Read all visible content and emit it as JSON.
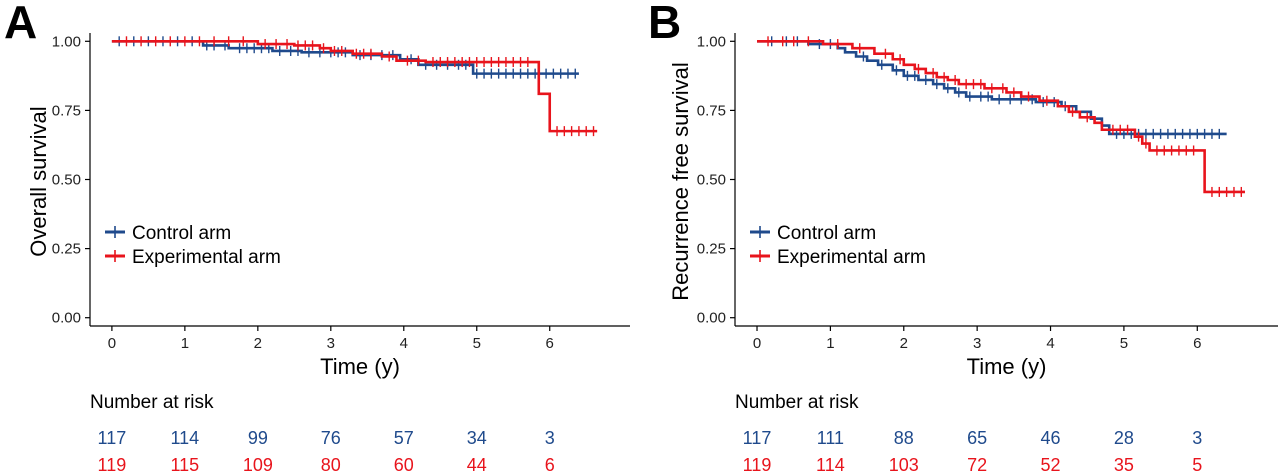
{
  "colors": {
    "control": "#1f4a8c",
    "experimental": "#e8141c",
    "axis": "#000000"
  },
  "number_at_risk_label": "Number at risk",
  "chart_data": [
    {
      "type": "line",
      "subtype": "kaplan-meier",
      "panel_label": "A",
      "title": "",
      "xlabel": "Time (y)",
      "ylabel": "Overall survival",
      "xlim": [
        -0.3,
        7.1
      ],
      "ylim": [
        -0.03,
        1.03
      ],
      "xticks": [
        0,
        1,
        2,
        3,
        4,
        5,
        6
      ],
      "yticks": [
        "0.00",
        "0.25",
        "0.50",
        "0.75",
        "1.00"
      ],
      "grid": false,
      "legend_position": "middle-left",
      "series": [
        {
          "name": "Control arm",
          "color": "#1f4a8c",
          "steps": [
            [
              0,
              1.0
            ],
            [
              1.25,
              0.985
            ],
            [
              1.6,
              0.975
            ],
            [
              2.2,
              0.965
            ],
            [
              2.6,
              0.96
            ],
            [
              3.3,
              0.95
            ],
            [
              3.95,
              0.935
            ],
            [
              4.2,
              0.915
            ],
            [
              4.95,
              0.883
            ],
            [
              6.4,
              0.883
            ]
          ],
          "censors": [
            0.1,
            0.3,
            0.5,
            0.7,
            0.9,
            1.1,
            1.3,
            1.4,
            1.55,
            1.75,
            1.85,
            1.95,
            2.05,
            2.15,
            2.3,
            2.45,
            2.55,
            2.7,
            2.85,
            3.0,
            3.1,
            3.2,
            3.4,
            3.55,
            3.7,
            3.85,
            4.1,
            4.3,
            4.45,
            4.6,
            4.75,
            4.85,
            5.0,
            5.1,
            5.2,
            5.3,
            5.4,
            5.5,
            5.6,
            5.7,
            5.8,
            5.95,
            6.05,
            6.15,
            6.25,
            6.35
          ]
        },
        {
          "name": "Experimental arm",
          "color": "#e8141c",
          "steps": [
            [
              0,
              1.0
            ],
            [
              2.0,
              0.99
            ],
            [
              2.5,
              0.985
            ],
            [
              2.85,
              0.975
            ],
            [
              3.0,
              0.965
            ],
            [
              3.3,
              0.955
            ],
            [
              3.7,
              0.945
            ],
            [
              3.9,
              0.93
            ],
            [
              4.3,
              0.925
            ],
            [
              5.85,
              0.81
            ],
            [
              6.0,
              0.675
            ],
            [
              6.65,
              0.675
            ]
          ],
          "censors": [
            0.2,
            0.4,
            0.6,
            0.8,
            1.0,
            1.2,
            1.4,
            1.6,
            1.8,
            2.1,
            2.25,
            2.4,
            2.55,
            2.65,
            2.75,
            2.9,
            3.05,
            3.15,
            3.35,
            3.45,
            3.55,
            3.8,
            4.05,
            4.2,
            4.4,
            4.5,
            4.6,
            4.7,
            4.8,
            4.9,
            5.0,
            5.1,
            5.2,
            5.3,
            5.4,
            5.5,
            5.6,
            5.7,
            6.1,
            6.2,
            6.3,
            6.4,
            6.5,
            6.6
          ]
        }
      ],
      "number_at_risk": {
        "times": [
          0,
          1,
          2,
          3,
          4,
          5,
          6
        ],
        "control": [
          "117",
          "114",
          "99",
          "76",
          "57",
          "34",
          "3"
        ],
        "experimental": [
          "119",
          "115",
          "109",
          "80",
          "60",
          "44",
          "6"
        ]
      }
    },
    {
      "type": "line",
      "subtype": "kaplan-meier",
      "panel_label": "B",
      "title": "",
      "xlabel": "Time (y)",
      "ylabel": "Recurrence free survival",
      "xlim": [
        -0.3,
        7.1
      ],
      "ylim": [
        -0.03,
        1.03
      ],
      "xticks": [
        0,
        1,
        2,
        3,
        4,
        5,
        6
      ],
      "yticks": [
        "0.00",
        "0.25",
        "0.50",
        "0.75",
        "1.00"
      ],
      "grid": false,
      "legend_position": "middle-left",
      "series": [
        {
          "name": "Control arm",
          "color": "#1f4a8c",
          "steps": [
            [
              0,
              1.0
            ],
            [
              0.7,
              0.99
            ],
            [
              1.1,
              0.975
            ],
            [
              1.2,
              0.96
            ],
            [
              1.35,
              0.945
            ],
            [
              1.5,
              0.93
            ],
            [
              1.65,
              0.915
            ],
            [
              1.85,
              0.895
            ],
            [
              2.0,
              0.875
            ],
            [
              2.2,
              0.86
            ],
            [
              2.4,
              0.845
            ],
            [
              2.55,
              0.83
            ],
            [
              2.7,
              0.815
            ],
            [
              2.85,
              0.8
            ],
            [
              3.2,
              0.79
            ],
            [
              3.8,
              0.78
            ],
            [
              4.15,
              0.765
            ],
            [
              4.35,
              0.745
            ],
            [
              4.55,
              0.72
            ],
            [
              4.7,
              0.695
            ],
            [
              4.8,
              0.665
            ],
            [
              6.4,
              0.665
            ]
          ],
          "censors": [
            0.2,
            0.4,
            0.55,
            0.85,
            1.0,
            1.45,
            1.7,
            1.9,
            2.05,
            2.15,
            2.3,
            2.45,
            2.6,
            2.75,
            2.9,
            3.05,
            3.15,
            3.3,
            3.45,
            3.6,
            3.75,
            3.9,
            4.05,
            4.2,
            4.9,
            5.0,
            5.1,
            5.2,
            5.3,
            5.4,
            5.5,
            5.6,
            5.7,
            5.8,
            5.9,
            6.0,
            6.1,
            6.2,
            6.3
          ]
        },
        {
          "name": "Experimental arm",
          "color": "#e8141c",
          "steps": [
            [
              0,
              1.0
            ],
            [
              0.9,
              0.99
            ],
            [
              1.3,
              0.975
            ],
            [
              1.6,
              0.955
            ],
            [
              1.85,
              0.935
            ],
            [
              2.0,
              0.915
            ],
            [
              2.15,
              0.9
            ],
            [
              2.3,
              0.885
            ],
            [
              2.45,
              0.87
            ],
            [
              2.6,
              0.86
            ],
            [
              2.75,
              0.845
            ],
            [
              3.1,
              0.83
            ],
            [
              3.4,
              0.815
            ],
            [
              3.6,
              0.8
            ],
            [
              3.85,
              0.785
            ],
            [
              4.1,
              0.765
            ],
            [
              4.25,
              0.745
            ],
            [
              4.4,
              0.725
            ],
            [
              4.6,
              0.705
            ],
            [
              4.7,
              0.68
            ],
            [
              5.15,
              0.655
            ],
            [
              5.25,
              0.63
            ],
            [
              5.35,
              0.605
            ],
            [
              6.1,
              0.455
            ],
            [
              6.65,
              0.455
            ]
          ],
          "censors": [
            0.15,
            0.35,
            0.5,
            0.7,
            1.1,
            1.4,
            1.75,
            1.95,
            2.2,
            2.4,
            2.55,
            2.7,
            2.85,
            2.95,
            3.05,
            3.2,
            3.35,
            3.5,
            3.7,
            3.95,
            4.3,
            4.5,
            4.85,
            4.95,
            5.05,
            5.2,
            5.3,
            5.45,
            5.55,
            5.65,
            5.75,
            5.85,
            5.95,
            6.2,
            6.3,
            6.4,
            6.5,
            6.6
          ]
        }
      ],
      "number_at_risk": {
        "times": [
          0,
          1,
          2,
          3,
          4,
          5,
          6
        ],
        "control": [
          "117",
          "111",
          "88",
          "65",
          "46",
          "28",
          "3"
        ],
        "experimental": [
          "119",
          "114",
          "103",
          "72",
          "52",
          "35",
          "5"
        ]
      }
    }
  ]
}
